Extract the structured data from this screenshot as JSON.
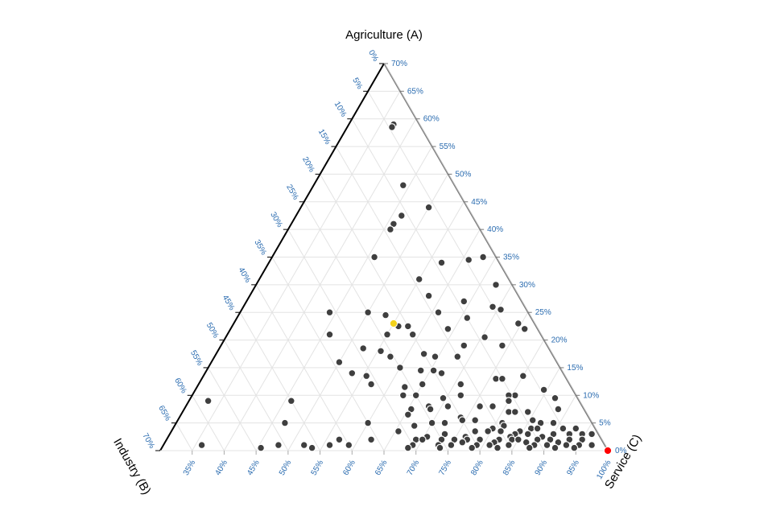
{
  "chart_data": {
    "type": "scatter",
    "subtype": "ternary",
    "axes": {
      "a": {
        "title": "Agriculture (A)",
        "range": [
          0,
          70
        ],
        "tick_labels": [
          "0%",
          "5%",
          "10%",
          "15%",
          "20%",
          "25%",
          "30%",
          "35%",
          "40%",
          "45%",
          "50%",
          "55%",
          "60%",
          "65%",
          "70%"
        ]
      },
      "b": {
        "title": "Industry (B)",
        "range": [
          0,
          70
        ],
        "tick_labels": [
          "0%",
          "5%",
          "10%",
          "15%",
          "20%",
          "25%",
          "30%",
          "35%",
          "40%",
          "45%",
          "50%",
          "55%",
          "60%",
          "65%",
          "70%"
        ]
      },
      "c": {
        "title": "Service (C)",
        "range": [
          30,
          100
        ],
        "tick_labels": [
          "35%",
          "40%",
          "45%",
          "50%",
          "55%",
          "60%",
          "65%",
          "70%",
          "75%",
          "80%",
          "85%",
          "90%",
          "95%",
          "100%"
        ]
      }
    },
    "grid": true,
    "colors": {
      "points": "#3f3f3f",
      "highlight_1": "#f2d21b",
      "highlight_2": "#ff0000",
      "tick_labels": "#2b6cb0",
      "grid": "#e3e3e3"
    },
    "points": [
      {
        "a": 59,
        "b": 4
      },
      {
        "a": 58.5,
        "b": 4.5
      },
      {
        "a": 48,
        "b": 8
      },
      {
        "a": 42.5,
        "b": 11
      },
      {
        "a": 41,
        "b": 13
      },
      {
        "a": 40,
        "b": 14
      },
      {
        "a": 44,
        "b": 6
      },
      {
        "a": 35,
        "b": 19
      },
      {
        "a": 34,
        "b": 9
      },
      {
        "a": 35,
        "b": 2
      },
      {
        "a": 34.5,
        "b": 4.5
      },
      {
        "a": 31,
        "b": 14
      },
      {
        "a": 30,
        "b": 2.5
      },
      {
        "a": 28,
        "b": 14
      },
      {
        "a": 27,
        "b": 9
      },
      {
        "a": 26,
        "b": 5
      },
      {
        "a": 25,
        "b": 14
      },
      {
        "a": 25.5,
        "b": 4
      },
      {
        "a": 25,
        "b": 31
      },
      {
        "a": 25,
        "b": 25
      },
      {
        "a": 24.5,
        "b": 22.5
      },
      {
        "a": 24,
        "b": 10
      },
      {
        "a": 23,
        "b": 2.5
      },
      {
        "a": 22.5,
        "b": 21.5
      },
      {
        "a": 22.5,
        "b": 20
      },
      {
        "a": 22,
        "b": 14
      },
      {
        "a": 22,
        "b": 2
      },
      {
        "a": 21,
        "b": 33
      },
      {
        "a": 21,
        "b": 24
      },
      {
        "a": 21,
        "b": 20
      },
      {
        "a": 20.5,
        "b": 9
      },
      {
        "a": 19,
        "b": 7
      },
      {
        "a": 19,
        "b": 13
      },
      {
        "a": 18.5,
        "b": 29
      },
      {
        "a": 18,
        "b": 26.5
      },
      {
        "a": 17.5,
        "b": 20
      },
      {
        "a": 17,
        "b": 25.5
      },
      {
        "a": 17,
        "b": 18.5
      },
      {
        "a": 17,
        "b": 15
      },
      {
        "a": 16,
        "b": 34
      },
      {
        "a": 15,
        "b": 25
      },
      {
        "a": 14.5,
        "b": 20
      },
      {
        "a": 14.5,
        "b": 22
      },
      {
        "a": 14,
        "b": 33
      },
      {
        "a": 14,
        "b": 19
      },
      {
        "a": 13.5,
        "b": 31
      },
      {
        "a": 13,
        "b": 11
      },
      {
        "a": 13,
        "b": 10
      },
      {
        "a": 13.5,
        "b": 6.5
      },
      {
        "a": 12,
        "b": 23
      },
      {
        "a": 12,
        "b": 17
      },
      {
        "a": 12,
        "b": 31
      },
      {
        "a": 11.5,
        "b": 26
      },
      {
        "a": 11,
        "b": 4.5
      },
      {
        "a": 10,
        "b": 27
      },
      {
        "a": 10,
        "b": 25
      },
      {
        "a": 10,
        "b": 9.5
      },
      {
        "a": 10,
        "b": 10.5
      },
      {
        "a": 10,
        "b": 18
      },
      {
        "a": 9.5,
        "b": 21
      },
      {
        "a": 9.5,
        "b": 3.5
      },
      {
        "a": 9,
        "b": 11
      },
      {
        "a": 9,
        "b": 58
      },
      {
        "a": 9,
        "b": 45
      },
      {
        "a": 8,
        "b": 24
      },
      {
        "a": 8,
        "b": 21
      },
      {
        "a": 8,
        "b": 16
      },
      {
        "a": 8,
        "b": 14
      },
      {
        "a": 7.5,
        "b": 24
      },
      {
        "a": 7.5,
        "b": 4
      },
      {
        "a": 7.5,
        "b": 27
      },
      {
        "a": 7,
        "b": 12
      },
      {
        "a": 7,
        "b": 11
      },
      {
        "a": 7,
        "b": 9
      },
      {
        "a": 6.5,
        "b": 28
      },
      {
        "a": 6,
        "b": 20
      },
      {
        "a": 5.5,
        "b": 20
      },
      {
        "a": 5.5,
        "b": 18
      },
      {
        "a": 5.5,
        "b": 9
      },
      {
        "a": 5,
        "b": 48
      },
      {
        "a": 5,
        "b": 35
      },
      {
        "a": 5,
        "b": 25
      },
      {
        "a": 5,
        "b": 23
      },
      {
        "a": 5,
        "b": 14
      },
      {
        "a": 5,
        "b": 8
      },
      {
        "a": 5,
        "b": 6
      },
      {
        "a": 4.5,
        "b": 28
      },
      {
        "a": 4.5,
        "b": 14
      },
      {
        "a": 4,
        "b": 16
      },
      {
        "a": 4,
        "b": 10
      },
      {
        "a": 4,
        "b": 9
      },
      {
        "a": 4,
        "b": 5
      },
      {
        "a": 4,
        "b": 3
      },
      {
        "a": 3.5,
        "b": 31
      },
      {
        "a": 3.5,
        "b": 19
      },
      {
        "a": 3.5,
        "b": 17
      },
      {
        "a": 3.5,
        "b": 15
      },
      {
        "a": 3.5,
        "b": 12
      },
      {
        "a": 3,
        "b": 24
      },
      {
        "a": 3,
        "b": 13
      },
      {
        "a": 3,
        "b": 11
      },
      {
        "a": 3,
        "b": 7
      },
      {
        "a": 3,
        "b": 4.5
      },
      {
        "a": 3,
        "b": 2.5
      },
      {
        "a": 3,
        "b": 1
      },
      {
        "a": 2.5,
        "b": 27
      },
      {
        "a": 2.5,
        "b": 21
      },
      {
        "a": 2.5,
        "b": 14
      },
      {
        "a": 2.5,
        "b": 9
      },
      {
        "a": 2,
        "b": 41
      },
      {
        "a": 2,
        "b": 36
      },
      {
        "a": 2,
        "b": 29
      },
      {
        "a": 2,
        "b": 28
      },
      {
        "a": 2,
        "b": 25
      },
      {
        "a": 2,
        "b": 23
      },
      {
        "a": 2,
        "b": 21
      },
      {
        "a": 2,
        "b": 19
      },
      {
        "a": 2,
        "b": 16
      },
      {
        "a": 2,
        "b": 14
      },
      {
        "a": 2,
        "b": 13
      },
      {
        "a": 2,
        "b": 10
      },
      {
        "a": 2,
        "b": 8
      },
      {
        "a": 2,
        "b": 5
      },
      {
        "a": 2,
        "b": 3
      },
      {
        "a": 1.5,
        "b": 22
      },
      {
        "a": 1.5,
        "b": 17
      },
      {
        "a": 1.5,
        "b": 12
      },
      {
        "a": 1.5,
        "b": 7
      },
      {
        "a": 1,
        "b": 63
      },
      {
        "a": 1,
        "b": 51
      },
      {
        "a": 1,
        "b": 47
      },
      {
        "a": 1,
        "b": 43
      },
      {
        "a": 1,
        "b": 40
      },
      {
        "a": 1,
        "b": 30
      },
      {
        "a": 1,
        "b": 26
      },
      {
        "a": 1,
        "b": 24
      },
      {
        "a": 1,
        "b": 20
      },
      {
        "a": 1,
        "b": 18
      },
      {
        "a": 1,
        "b": 15
      },
      {
        "a": 1,
        "b": 11
      },
      {
        "a": 1,
        "b": 9
      },
      {
        "a": 1,
        "b": 6
      },
      {
        "a": 1,
        "b": 4
      },
      {
        "a": 1,
        "b": 2
      },
      {
        "a": 0.5,
        "b": 54
      },
      {
        "a": 0.5,
        "b": 46
      },
      {
        "a": 0.5,
        "b": 31
      },
      {
        "a": 0.5,
        "b": 26
      },
      {
        "a": 0.5,
        "b": 21
      },
      {
        "a": 0.5,
        "b": 17
      },
      {
        "a": 0.5,
        "b": 12
      },
      {
        "a": 0.5,
        "b": 8
      },
      {
        "a": 0.5,
        "b": 5
      }
    ],
    "highlighted_points": [
      {
        "a": 23,
        "b": 22,
        "color": "#f2d21b"
      },
      {
        "a": 0,
        "b": 0,
        "color": "#ff0000"
      }
    ]
  }
}
